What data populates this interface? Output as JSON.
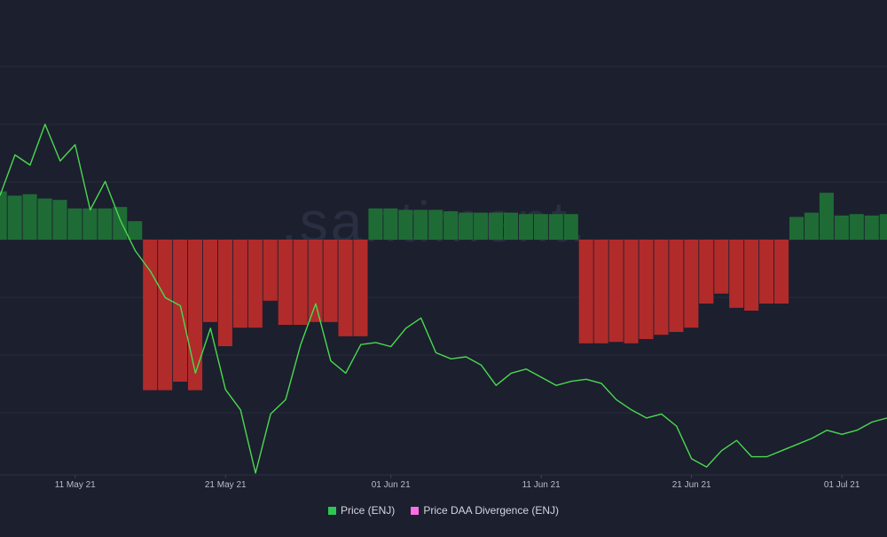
{
  "watermark": ".santiment.",
  "colors": {
    "background": "#1c1f2e",
    "grid": "#272b3b",
    "price_line": "#49d94f",
    "bar_positive": "#1f6b36",
    "bar_negative": "#b12b2b",
    "bar_negative_dark": "#6f1717",
    "legend_price": "#2dc653",
    "legend_divergence": "#ff6ee6",
    "watermark": "#2a2e40"
  },
  "chart_data": {
    "type": "line",
    "x_ticks": [
      "11 May 21",
      "21 May 21",
      "01 Jun 21",
      "11 Jun 21",
      "21 Jun 21",
      "01 Jul 21"
    ],
    "x_range": [
      "2021-05-06",
      "2021-07-04"
    ],
    "grid": true,
    "legend_position": "bottom-center",
    "series": [
      {
        "name": "Price (ENJ)",
        "type": "line",
        "axis": "hidden",
        "points": [
          [
            "2021-05-06",
            2.55
          ],
          [
            "2021-05-07",
            2.75
          ],
          [
            "2021-05-08",
            2.7
          ],
          [
            "2021-05-09",
            2.9
          ],
          [
            "2021-05-10",
            2.72
          ],
          [
            "2021-05-11",
            2.8
          ],
          [
            "2021-05-12",
            2.48
          ],
          [
            "2021-05-13",
            2.62
          ],
          [
            "2021-05-14",
            2.43
          ],
          [
            "2021-05-15",
            2.28
          ],
          [
            "2021-05-16",
            2.18
          ],
          [
            "2021-05-17",
            2.05
          ],
          [
            "2021-05-18",
            2.01
          ],
          [
            "2021-05-19",
            1.68
          ],
          [
            "2021-05-20",
            1.9
          ],
          [
            "2021-05-21",
            1.6
          ],
          [
            "2021-05-22",
            1.5
          ],
          [
            "2021-05-23",
            1.19
          ],
          [
            "2021-05-24",
            1.48
          ],
          [
            "2021-05-25",
            1.55
          ],
          [
            "2021-05-26",
            1.82
          ],
          [
            "2021-05-27",
            2.02
          ],
          [
            "2021-05-28",
            1.74
          ],
          [
            "2021-05-29",
            1.68
          ],
          [
            "2021-05-30",
            1.82
          ],
          [
            "2021-05-31",
            1.83
          ],
          [
            "2021-06-01",
            1.81
          ],
          [
            "2021-06-02",
            1.9
          ],
          [
            "2021-06-03",
            1.95
          ],
          [
            "2021-06-04",
            1.78
          ],
          [
            "2021-06-05",
            1.75
          ],
          [
            "2021-06-06",
            1.76
          ],
          [
            "2021-06-07",
            1.72
          ],
          [
            "2021-06-08",
            1.62
          ],
          [
            "2021-06-09",
            1.68
          ],
          [
            "2021-06-10",
            1.7
          ],
          [
            "2021-06-11",
            1.66
          ],
          [
            "2021-06-12",
            1.62
          ],
          [
            "2021-06-13",
            1.64
          ],
          [
            "2021-06-14",
            1.65
          ],
          [
            "2021-06-15",
            1.63
          ],
          [
            "2021-06-16",
            1.55
          ],
          [
            "2021-06-17",
            1.5
          ],
          [
            "2021-06-18",
            1.46
          ],
          [
            "2021-06-19",
            1.48
          ],
          [
            "2021-06-20",
            1.42
          ],
          [
            "2021-06-21",
            1.26
          ],
          [
            "2021-06-22",
            1.22
          ],
          [
            "2021-06-23",
            1.3
          ],
          [
            "2021-06-24",
            1.35
          ],
          [
            "2021-06-25",
            1.27
          ],
          [
            "2021-06-26",
            1.27
          ],
          [
            "2021-06-27",
            1.3
          ],
          [
            "2021-06-28",
            1.33
          ],
          [
            "2021-06-29",
            1.36
          ],
          [
            "2021-06-30",
            1.4
          ],
          [
            "2021-07-01",
            1.38
          ],
          [
            "2021-07-02",
            1.4
          ],
          [
            "2021-07-03",
            1.44
          ],
          [
            "2021-07-04",
            1.46
          ]
        ]
      },
      {
        "name": "Price DAA Divergence (ENJ)",
        "type": "bar",
        "axis": "hidden",
        "baseline": 0,
        "points": [
          [
            "2021-05-06",
            0.34
          ],
          [
            "2021-05-07",
            0.31
          ],
          [
            "2021-05-08",
            0.32
          ],
          [
            "2021-05-09",
            0.29
          ],
          [
            "2021-05-10",
            0.28
          ],
          [
            "2021-05-11",
            0.22
          ],
          [
            "2021-05-12",
            0.22
          ],
          [
            "2021-05-13",
            0.22
          ],
          [
            "2021-05-14",
            0.23
          ],
          [
            "2021-05-15",
            0.13
          ],
          [
            "2021-05-16",
            -1.06
          ],
          [
            "2021-05-17",
            -1.06
          ],
          [
            "2021-05-18",
            -1.0
          ],
          [
            "2021-05-19",
            -1.06
          ],
          [
            "2021-05-20",
            -0.58
          ],
          [
            "2021-05-21",
            -0.75
          ],
          [
            "2021-05-22",
            -0.62
          ],
          [
            "2021-05-23",
            -0.62
          ],
          [
            "2021-05-24",
            -0.43
          ],
          [
            "2021-05-25",
            -0.6
          ],
          [
            "2021-05-26",
            -0.6
          ],
          [
            "2021-05-27",
            -0.58
          ],
          [
            "2021-05-28",
            -0.58
          ],
          [
            "2021-05-29",
            -0.68
          ],
          [
            "2021-05-30",
            -0.68
          ],
          [
            "2021-05-31",
            0.22
          ],
          [
            "2021-06-01",
            0.22
          ],
          [
            "2021-06-02",
            0.21
          ],
          [
            "2021-06-03",
            0.21
          ],
          [
            "2021-06-04",
            0.21
          ],
          [
            "2021-06-05",
            0.2
          ],
          [
            "2021-06-06",
            0.19
          ],
          [
            "2021-06-07",
            0.19
          ],
          [
            "2021-06-08",
            0.19
          ],
          [
            "2021-06-09",
            0.19
          ],
          [
            "2021-06-10",
            0.18
          ],
          [
            "2021-06-11",
            0.18
          ],
          [
            "2021-06-12",
            0.18
          ],
          [
            "2021-06-13",
            0.18
          ],
          [
            "2021-06-14",
            -0.73
          ],
          [
            "2021-06-15",
            -0.73
          ],
          [
            "2021-06-16",
            -0.72
          ],
          [
            "2021-06-17",
            -0.73
          ],
          [
            "2021-06-18",
            -0.7
          ],
          [
            "2021-06-19",
            -0.67
          ],
          [
            "2021-06-20",
            -0.65
          ],
          [
            "2021-06-21",
            -0.62
          ],
          [
            "2021-06-22",
            -0.45
          ],
          [
            "2021-06-23",
            -0.38
          ],
          [
            "2021-06-24",
            -0.48
          ],
          [
            "2021-06-25",
            -0.5
          ],
          [
            "2021-06-26",
            -0.45
          ],
          [
            "2021-06-27",
            -0.45
          ],
          [
            "2021-06-28",
            0.16
          ],
          [
            "2021-06-29",
            0.19
          ],
          [
            "2021-06-30",
            0.33
          ],
          [
            "2021-07-01",
            0.17
          ],
          [
            "2021-07-02",
            0.18
          ],
          [
            "2021-07-03",
            0.17
          ],
          [
            "2021-07-04",
            0.18
          ]
        ]
      }
    ]
  }
}
